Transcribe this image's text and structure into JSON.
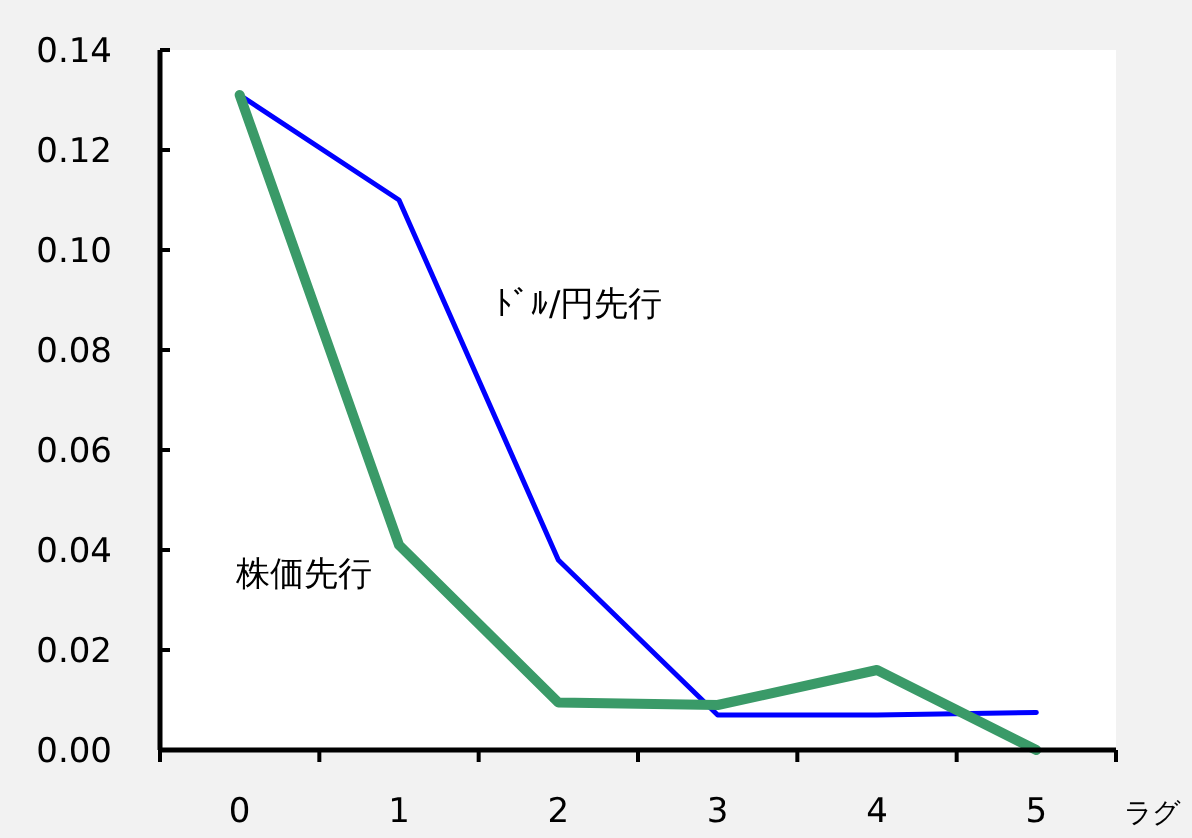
{
  "chart_data": {
    "type": "line",
    "xlabel": "ラグ",
    "categories": [
      "0",
      "1",
      "2",
      "3",
      "4",
      "5"
    ],
    "series": [
      {
        "name": "ﾄﾞﾙ/円先行",
        "color": "#0000ff",
        "values": [
          0.131,
          0.11,
          0.038,
          0.007,
          0.007,
          0.0075
        ]
      },
      {
        "name": "株価先行",
        "color": "#3a9a68",
        "values": [
          0.131,
          0.041,
          0.0095,
          0.009,
          0.016,
          0.0
        ]
      }
    ],
    "ylim": [
      0,
      0.14
    ],
    "yticks": [
      {
        "value": 0,
        "label": "0.00"
      },
      {
        "value": 0.02,
        "label": "0.02"
      },
      {
        "value": 0.04,
        "label": "0.04"
      },
      {
        "value": 0.06,
        "label": "0.06"
      },
      {
        "value": 0.08,
        "label": "0.08"
      },
      {
        "value": 0.1,
        "label": "0.10"
      },
      {
        "value": 0.12,
        "label": "0.12"
      },
      {
        "value": 0.14,
        "label": "0.14"
      }
    ],
    "grid": false,
    "marker": "none",
    "line_style": "solid"
  }
}
